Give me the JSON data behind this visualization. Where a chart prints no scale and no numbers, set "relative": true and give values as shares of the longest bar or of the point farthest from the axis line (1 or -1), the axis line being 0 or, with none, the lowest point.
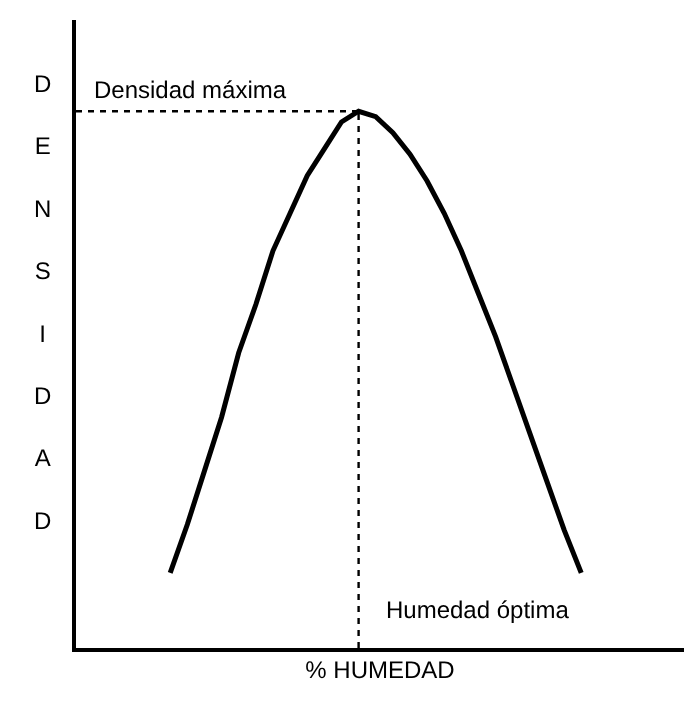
{
  "chart_data": {
    "type": "line",
    "relative": true,
    "xlabel": "% HUMEDAD",
    "ylabel": "DENSIDAD",
    "categories": [
      null,
      null,
      null,
      null,
      null,
      null,
      null,
      null,
      null,
      null,
      null,
      null,
      null,
      null,
      null,
      null,
      null,
      null,
      null,
      null,
      null,
      null,
      null,
      null,
      null
    ],
    "series": [
      {
        "color": "#000000",
        "values": [
          0.14,
          0.23,
          0.33,
          0.43,
          0.55,
          0.64,
          0.74,
          0.81,
          0.88,
          0.93,
          0.98,
          1,
          0.99,
          0.96,
          0.92,
          0.87,
          0.81,
          0.74,
          0.66,
          0.58,
          0.49,
          0.4,
          0.31,
          0.22,
          0.14
        ]
      }
    ],
    "ref_lines": [
      {
        "axis": "y",
        "value": 1,
        "label": "Densidad máxima",
        "line_style": "dotted",
        "color": "#000000"
      }
    ],
    "annotations": [
      "Humedad óptima"
    ],
    "marker": "none",
    "line_style": "solid"
  }
}
